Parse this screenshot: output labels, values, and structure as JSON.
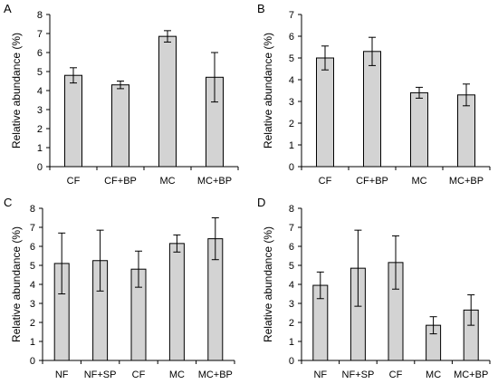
{
  "colors": {
    "bar_fill": "#d3d3d3",
    "bar_stroke": "#000000",
    "axis": "#000000"
  },
  "chart_data": [
    {
      "panel_label": "A",
      "type": "bar",
      "ylabel": "Relative abundance (%)",
      "ylim": [
        0,
        8
      ],
      "yticks": [
        "0",
        "1",
        "2",
        "3",
        "4",
        "5",
        "6",
        "7",
        "8"
      ],
      "grid": false,
      "categories": [
        "CF",
        "CF+BP",
        "MC",
        "MC+BP"
      ],
      "values": [
        4.8,
        4.3,
        6.85,
        4.7
      ],
      "errors": [
        0.4,
        0.2,
        0.3,
        1.3
      ]
    },
    {
      "panel_label": "B",
      "type": "bar",
      "ylabel": "Relative abundance (%)",
      "ylim": [
        0,
        7
      ],
      "yticks": [
        "0",
        "1",
        "2",
        "3",
        "4",
        "5",
        "6",
        "7"
      ],
      "grid": false,
      "categories": [
        "CF",
        "CF+BP",
        "MC",
        "MC+BP"
      ],
      "values": [
        5.0,
        5.3,
        3.4,
        3.3
      ],
      "errors": [
        0.55,
        0.65,
        0.25,
        0.5
      ]
    },
    {
      "panel_label": "C",
      "type": "bar",
      "ylabel": "Relative abundance  (%)",
      "ylim": [
        0,
        8
      ],
      "yticks": [
        "0",
        "1",
        "2",
        "3",
        "4",
        "5",
        "6",
        "7",
        "8"
      ],
      "grid": false,
      "categories": [
        "NF",
        "NF+SP",
        "CF",
        "MC",
        "MC+BP"
      ],
      "values": [
        5.1,
        5.25,
        4.8,
        6.15,
        6.4
      ],
      "errors": [
        1.6,
        1.6,
        0.95,
        0.45,
        1.1
      ]
    },
    {
      "panel_label": "D",
      "type": "bar",
      "ylabel": "Relative abundance  (%)",
      "ylim": [
        0,
        8
      ],
      "yticks": [
        "0",
        "1",
        "2",
        "3",
        "4",
        "5",
        "6",
        "7",
        "8"
      ],
      "grid": false,
      "categories": [
        "NF",
        "NF+SP",
        "CF",
        "MC",
        "MC+BP"
      ],
      "values": [
        3.95,
        4.85,
        5.15,
        1.85,
        2.65
      ],
      "errors": [
        0.7,
        2.0,
        1.4,
        0.45,
        0.8
      ]
    }
  ]
}
